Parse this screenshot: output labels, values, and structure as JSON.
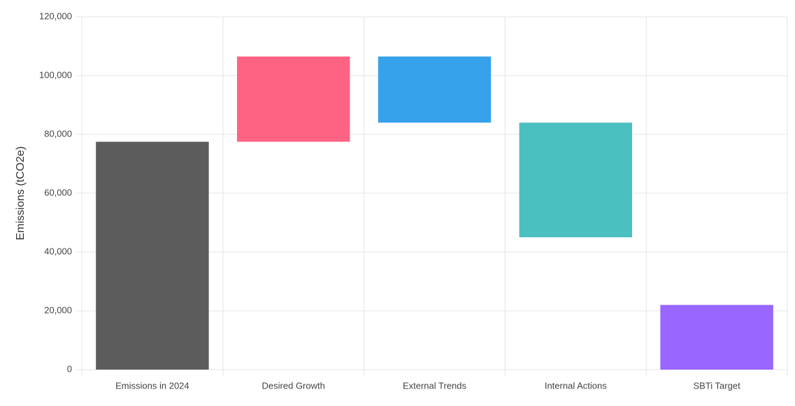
{
  "chart_data": {
    "type": "floating-bar",
    "y_axis_label": "Emissions (tCO2e)",
    "categories": [
      "Emissions in 2024",
      "Desired Growth",
      "External Trends",
      "Internal Actions",
      "SBTi Target"
    ],
    "values": [
      [
        0,
        77500
      ],
      [
        77500,
        106500
      ],
      [
        84000,
        106500
      ],
      [
        45000,
        84000
      ],
      [
        0,
        22000
      ]
    ],
    "colors": [
      "#5c5c5c",
      "#ff6384",
      "#36a2eb",
      "#4bc0c0",
      "#9966ff"
    ],
    "ylim": [
      0,
      120000
    ],
    "yticks": [
      0,
      {
        "value": 20000,
        "label": "20,000"
      },
      {
        "value": 40000,
        "label": "40,000"
      },
      {
        "value": 60000,
        "label": "60,000"
      },
      {
        "value": 80000,
        "label": "80,000"
      },
      {
        "value": 100000,
        "label": "100,000"
      },
      {
        "value": 120000,
        "label": "120,000"
      }
    ],
    "grid": true
  }
}
